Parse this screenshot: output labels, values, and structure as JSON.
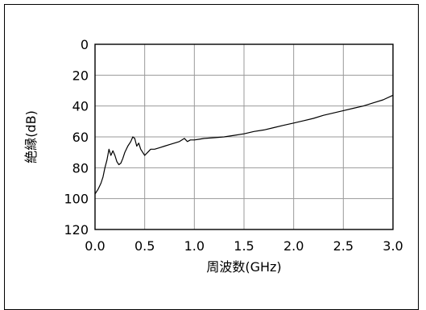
{
  "chart_data": {
    "type": "line",
    "title": "",
    "xlabel": "周波数(GHz)",
    "ylabel": "絶縁(dB)",
    "xlim": [
      0.0,
      3.0
    ],
    "ylim": [
      0,
      120
    ],
    "y_inverted": true,
    "grid": true,
    "xticks": [
      "0.0",
      "0.5",
      "1.0",
      "1.5",
      "2.0",
      "2.5",
      "3.0"
    ],
    "yticks": [
      "0",
      "20",
      "40",
      "60",
      "80",
      "100",
      "120"
    ],
    "series": [
      {
        "name": "",
        "color": "#000000",
        "x": [
          0.0,
          0.03,
          0.06,
          0.08,
          0.1,
          0.12,
          0.14,
          0.16,
          0.18,
          0.2,
          0.22,
          0.24,
          0.26,
          0.28,
          0.3,
          0.33,
          0.36,
          0.38,
          0.4,
          0.42,
          0.44,
          0.46,
          0.48,
          0.5,
          0.53,
          0.56,
          0.6,
          0.65,
          0.7,
          0.75,
          0.8,
          0.85,
          0.9,
          0.93,
          0.96,
          1.0,
          1.05,
          1.1,
          1.2,
          1.3,
          1.4,
          1.5,
          1.6,
          1.7,
          1.8,
          1.9,
          2.0,
          2.1,
          2.2,
          2.3,
          2.4,
          2.5,
          2.6,
          2.7,
          2.8,
          2.9,
          3.0
        ],
        "y": [
          97,
          94,
          90,
          86,
          80,
          75,
          68,
          72,
          69,
          72,
          76,
          78,
          77,
          74,
          70,
          66,
          63,
          60,
          61,
          66,
          64,
          68,
          70,
          72,
          70,
          68,
          68,
          67,
          66,
          65,
          64,
          63,
          61,
          63,
          62,
          62,
          61.5,
          61,
          60.5,
          60,
          59,
          58,
          56.5,
          55.5,
          54,
          52.5,
          51,
          49.5,
          48,
          46,
          44.5,
          43,
          41.5,
          40,
          38,
          36,
          33
        ]
      }
    ]
  }
}
